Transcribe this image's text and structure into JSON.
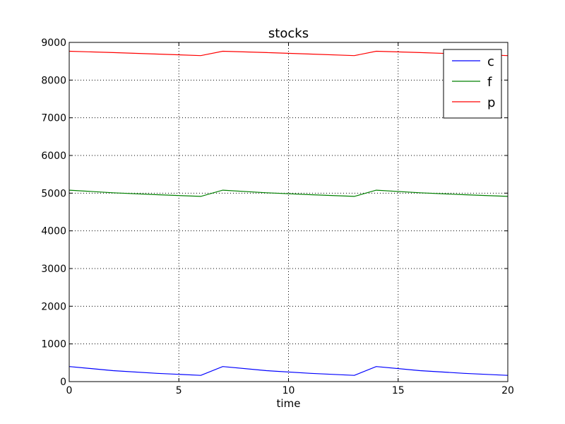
{
  "chart_data": {
    "type": "line",
    "title": "stocks",
    "xlabel": "time",
    "ylabel": "",
    "xlim": [
      0,
      20
    ],
    "ylim": [
      0,
      9000
    ],
    "x_ticks": [
      0,
      5,
      10,
      15,
      20
    ],
    "y_ticks": [
      0,
      1000,
      2000,
      3000,
      4000,
      5000,
      6000,
      7000,
      8000,
      9000
    ],
    "x_tick_labels": [
      "0",
      "5",
      "10",
      "15",
      "20"
    ],
    "y_tick_labels": [
      "0",
      "1000",
      "2000",
      "3000",
      "4000",
      "5000",
      "6000",
      "7000",
      "8000",
      "9000"
    ],
    "grid": true,
    "legend_position": "top-right",
    "x": [
      0,
      2,
      4,
      6,
      7,
      9,
      11,
      13,
      14,
      16,
      18,
      20
    ],
    "series": [
      {
        "name": "c",
        "color": "#0000ff",
        "values": [
          400,
          290,
          220,
          165,
          400,
          290,
          220,
          165,
          400,
          290,
          220,
          165
        ]
      },
      {
        "name": "f",
        "color": "#008000",
        "values": [
          5080,
          5010,
          4960,
          4915,
          5080,
          5010,
          4960,
          4915,
          5080,
          5010,
          4960,
          4915
        ]
      },
      {
        "name": "p",
        "color": "#ff0000",
        "values": [
          8765,
          8730,
          8690,
          8650,
          8765,
          8730,
          8690,
          8650,
          8765,
          8730,
          8690,
          8650
        ]
      }
    ]
  }
}
